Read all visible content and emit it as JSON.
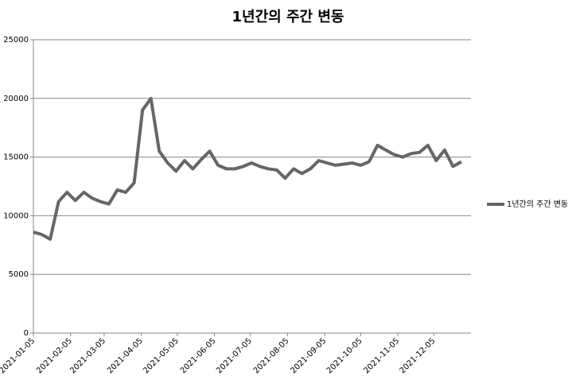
{
  "chart_data": {
    "type": "line",
    "title": "1년간의 주간 변동",
    "x": [
      "2021-01-05",
      "2021-01-12",
      "2021-01-19",
      "2021-01-26",
      "2021-02-02",
      "2021-02-09",
      "2021-02-16",
      "2021-02-23",
      "2021-03-02",
      "2021-03-09",
      "2021-03-16",
      "2021-03-23",
      "2021-03-30",
      "2021-04-06",
      "2021-04-13",
      "2021-04-20",
      "2021-04-27",
      "2021-05-04",
      "2021-05-11",
      "2021-05-18",
      "2021-05-25",
      "2021-06-01",
      "2021-06-08",
      "2021-06-15",
      "2021-06-22",
      "2021-06-29",
      "2021-07-06",
      "2021-07-13",
      "2021-07-20",
      "2021-07-27",
      "2021-08-03",
      "2021-08-10",
      "2021-08-17",
      "2021-08-24",
      "2021-08-31",
      "2021-09-07",
      "2021-09-14",
      "2021-09-21",
      "2021-09-28",
      "2021-10-05",
      "2021-10-12",
      "2021-10-19",
      "2021-10-26",
      "2021-11-02",
      "2021-11-09",
      "2021-11-16",
      "2021-11-23",
      "2021-11-30",
      "2021-12-07",
      "2021-12-14",
      "2021-12-21",
      "2021-12-28"
    ],
    "series": [
      {
        "name": "1년간의 주간 변동",
        "color": "#666666",
        "values": [
          8600,
          8400,
          8000,
          11200,
          12000,
          11300,
          12000,
          11500,
          11200,
          11000,
          12200,
          12000,
          12800,
          19000,
          20000,
          15500,
          14500,
          13800,
          14700,
          14000,
          14800,
          15500,
          14300,
          14000,
          14000,
          14200,
          14500,
          14200,
          14000,
          13900,
          13200,
          14000,
          13600,
          14000,
          14700,
          14500,
          14300,
          14400,
          14500,
          14300,
          14600,
          16000,
          15600,
          15200,
          15000,
          15300,
          15400,
          16000,
          14700,
          15600,
          14200,
          14600
        ]
      }
    ],
    "xlim": [
      "2021-01-05",
      "2022-01-05"
    ],
    "xticks": [
      "2021-01-05",
      "2021-02-05",
      "2021-03-05",
      "2021-04-05",
      "2021-05-05",
      "2021-06-05",
      "2021-07-05",
      "2021-08-05",
      "2021-09-05",
      "2021-10-05",
      "2021-11-05",
      "2021-12-05"
    ],
    "ylim": [
      0,
      25000
    ],
    "yticks": [
      0,
      5000,
      10000,
      15000,
      20000,
      25000
    ],
    "grid": true,
    "legend": "right"
  }
}
